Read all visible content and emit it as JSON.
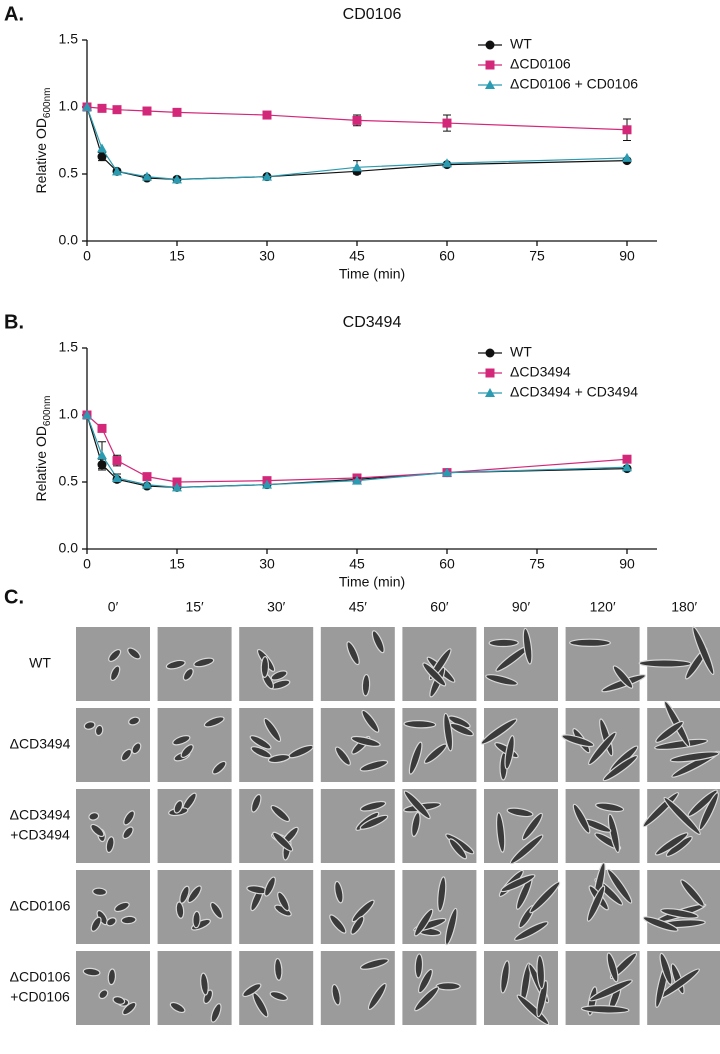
{
  "chart_data": [
    {
      "type": "line",
      "panel": "A.",
      "title": "CD0106",
      "y_label": "Relative OD",
      "y_label_subscript": "600nm",
      "x_label": "Time (min)",
      "x": [
        0,
        2.5,
        5,
        10,
        15,
        30,
        45,
        60,
        90
      ],
      "xlim": [
        0,
        95
      ],
      "xticks": [
        0,
        15,
        30,
        45,
        60,
        75,
        90
      ],
      "ylim": [
        0,
        1.5
      ],
      "yticks": [
        {
          "value": 0,
          "label": "0.0"
        },
        {
          "value": 0.5,
          "label": "0.5"
        },
        {
          "value": 1,
          "label": "1.0"
        },
        {
          "value": 1.5,
          "label": "1.5"
        }
      ],
      "legend": "upper right",
      "series": [
        {
          "name": "WT",
          "color": "#111111",
          "marker": "circle",
          "values": [
            1.0,
            0.63,
            0.52,
            0.47,
            0.46,
            0.48,
            0.52,
            0.57,
            0.6
          ],
          "errors": [
            null,
            0.03,
            null,
            null,
            null,
            null,
            null,
            null,
            null
          ]
        },
        {
          "name": "ΔCD0106",
          "color": "#d3287a",
          "marker": "square",
          "values": [
            1.0,
            0.99,
            0.98,
            0.97,
            0.96,
            0.94,
            0.9,
            0.88,
            0.83
          ],
          "errors": [
            null,
            null,
            null,
            null,
            null,
            null,
            0.04,
            0.06,
            0.08
          ]
        },
        {
          "name": "ΔCD0106 + CD0106",
          "color": "#2a9bb0",
          "marker": "triangle",
          "values": [
            1.0,
            0.69,
            0.52,
            0.48,
            0.46,
            0.48,
            0.55,
            0.58,
            0.62
          ],
          "errors": [
            null,
            null,
            null,
            null,
            null,
            null,
            0.05,
            null,
            null
          ]
        }
      ]
    },
    {
      "type": "line",
      "panel": "B.",
      "title": "CD3494",
      "y_label": "Relative OD",
      "y_label_subscript": "600nm",
      "x_label": "Time (min)",
      "x": [
        0,
        2.5,
        5,
        10,
        15,
        30,
        45,
        60,
        90
      ],
      "xlim": [
        0,
        95
      ],
      "xticks": [
        0,
        15,
        30,
        45,
        60,
        75,
        90
      ],
      "ylim": [
        0,
        1.5
      ],
      "yticks": [
        {
          "value": 0,
          "label": "0.0"
        },
        {
          "value": 0.5,
          "label": "0.5"
        },
        {
          "value": 1,
          "label": "1.0"
        },
        {
          "value": 1.5,
          "label": "1.5"
        }
      ],
      "legend": "upper right",
      "series": [
        {
          "name": "WT",
          "color": "#111111",
          "marker": "circle",
          "values": [
            1.0,
            0.63,
            0.52,
            0.47,
            0.46,
            0.48,
            0.52,
            0.57,
            0.6
          ],
          "errors": [
            null,
            0.04,
            null,
            null,
            null,
            null,
            null,
            null,
            null
          ]
        },
        {
          "name": "ΔCD3494",
          "color": "#d3287a",
          "marker": "square",
          "values": [
            1.0,
            0.9,
            0.66,
            0.54,
            0.5,
            0.51,
            0.53,
            0.57,
            0.67
          ],
          "errors": [
            null,
            null,
            0.04,
            null,
            null,
            null,
            null,
            null,
            null
          ]
        },
        {
          "name": "ΔCD3494 + CD3494",
          "color": "#2a9bb0",
          "marker": "triangle",
          "values": [
            1.0,
            0.7,
            0.53,
            0.48,
            0.46,
            0.48,
            0.51,
            0.57,
            0.61
          ],
          "errors": [
            null,
            0.1,
            0.03,
            null,
            null,
            null,
            0.02,
            null,
            null
          ]
        }
      ]
    }
  ],
  "panel_c": {
    "label": "C.",
    "times": [
      "0′",
      "15′",
      "30′",
      "45′",
      "60′",
      "90′",
      "120′",
      "180′"
    ],
    "rows": [
      [
        "WT"
      ],
      [
        "ΔCD3494"
      ],
      [
        "ΔCD3494",
        "+CD3494"
      ],
      [
        "ΔCD0106"
      ],
      [
        "ΔCD0106",
        "+CD0106"
      ]
    ]
  }
}
